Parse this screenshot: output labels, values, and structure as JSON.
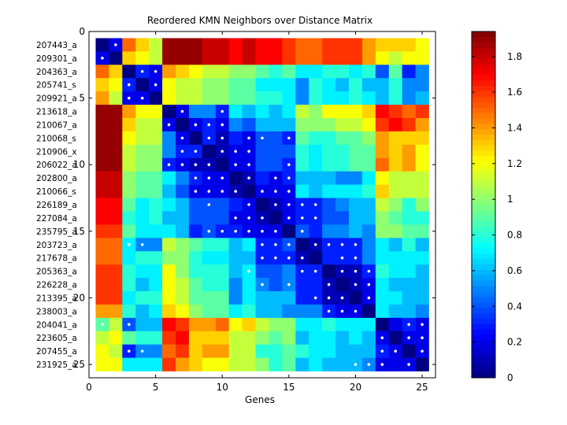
{
  "chart_data": {
    "type": "heatmap",
    "title": "Reordered KMN Neighbors over Distance Matrix",
    "xlabel": "Genes",
    "ylabel": "",
    "x_ticks": [
      "0",
      "5",
      "10",
      "15",
      "20",
      "25"
    ],
    "y_ticks": [
      "0",
      "5",
      "10",
      "15",
      "20",
      "25"
    ],
    "xlim": [
      0,
      26
    ],
    "ylim": [
      0,
      26
    ],
    "row_labels": [
      "207443_a",
      "209301_a",
      "204363_a",
      "205741_s",
      "209921_a",
      "213618_a",
      "210067_a",
      "210068_s",
      "210906_x",
      "206022_a",
      "202800_a",
      "210066_s",
      "226189_a",
      "227084_a",
      "235795_a",
      "203723_a",
      "217678_a",
      "205363_a",
      "226228_a",
      "213395_a",
      "238003_a",
      "204041_a",
      "223605_a",
      "207455_a",
      "231925_a"
    ],
    "colorbar": {
      "min": 0,
      "max": 1.94,
      "ticks": [
        "0",
        "0.2",
        "0.4",
        "0.6",
        "0.8",
        "1",
        "1.2",
        "1.4",
        "1.6",
        "1.8"
      ]
    },
    "matrix": [
      [
        0,
        0.2,
        1.5,
        1.3,
        1.1,
        1.9,
        1.9,
        1.9,
        1.8,
        1.8,
        1.7,
        1.8,
        1.7,
        1.7,
        1.6,
        1.5,
        1.5,
        1.6,
        1.6,
        1.6,
        1.4,
        1.3,
        1.3,
        1.3,
        1.2
      ],
      [
        0.2,
        0,
        1.3,
        1.2,
        1.1,
        1.9,
        1.9,
        1.9,
        1.8,
        1.8,
        1.7,
        1.8,
        1.7,
        1.7,
        1.6,
        1.5,
        1.5,
        1.6,
        1.6,
        1.6,
        1.4,
        1.2,
        1.1,
        1.2,
        1.2
      ],
      [
        1.5,
        1.3,
        0,
        0.3,
        0.2,
        1.4,
        1.3,
        1.2,
        1.1,
        1.1,
        1.0,
        1.0,
        0.9,
        0.8,
        0.9,
        0.7,
        0.7,
        0.8,
        0.8,
        0.7,
        0.8,
        0.4,
        0.9,
        0.3,
        0.5
      ],
      [
        1.3,
        1.2,
        0.3,
        0,
        0.2,
        1.2,
        1.1,
        1.1,
        1.0,
        1.0,
        0.9,
        0.9,
        0.7,
        0.7,
        0.7,
        0.5,
        0.8,
        0.7,
        0.6,
        0.8,
        0.6,
        0.6,
        0.8,
        0.5,
        0.5
      ],
      [
        1.4,
        1.1,
        0.2,
        0.2,
        0,
        1.2,
        1.1,
        1.1,
        1.0,
        1.0,
        0.9,
        0.9,
        0.8,
        0.8,
        0.7,
        0.5,
        0.8,
        0.7,
        0.7,
        0.8,
        0.7,
        0.6,
        0.8,
        0.5,
        0.6
      ],
      [
        1.9,
        1.9,
        1.4,
        1.2,
        1.2,
        0,
        0.2,
        0.5,
        0.5,
        0.3,
        0.7,
        0.6,
        0.7,
        0.6,
        0.7,
        1.1,
        1.0,
        1.2,
        1.2,
        1.2,
        1.3,
        1.7,
        1.6,
        1.5,
        1.6
      ],
      [
        1.9,
        1.9,
        1.3,
        1.1,
        1.1,
        0.2,
        0,
        0.2,
        0.3,
        0.2,
        0.5,
        0.4,
        0.6,
        0.6,
        0.6,
        1.0,
        1.0,
        1.0,
        1.1,
        1.1,
        1.2,
        1.6,
        1.7,
        1.6,
        1.4
      ],
      [
        1.9,
        1.9,
        1.2,
        1.1,
        1.1,
        0.5,
        0.2,
        0,
        0.3,
        0.1,
        0.3,
        0.2,
        0.4,
        0.4,
        0.3,
        0.9,
        0.8,
        0.8,
        0.9,
        0.9,
        1.0,
        1.4,
        1.3,
        1.3,
        1.3
      ],
      [
        1.9,
        1.9,
        1.1,
        1.0,
        1.0,
        0.5,
        0.3,
        0.3,
        0,
        0.1,
        0.2,
        0.2,
        0.4,
        0.4,
        0.4,
        0.8,
        0.7,
        0.8,
        0.8,
        0.9,
        0.9,
        1.4,
        1.3,
        1.4,
        1.2
      ],
      [
        1.9,
        1.9,
        1.1,
        1.0,
        1.0,
        0.3,
        0.2,
        0.1,
        0.1,
        0,
        0.2,
        0.2,
        0.4,
        0.4,
        0.3,
        0.8,
        0.7,
        0.8,
        0.8,
        0.9,
        0.9,
        1.5,
        1.3,
        1.4,
        1.2
      ],
      [
        1.8,
        1.8,
        1.0,
        0.9,
        0.9,
        0.7,
        0.5,
        0.3,
        0.2,
        0.2,
        0,
        0.1,
        0.3,
        0.2,
        0.3,
        0.6,
        0.6,
        0.6,
        0.5,
        0.5,
        0.7,
        1.2,
        1.1,
        1.1,
        1.1
      ],
      [
        1.8,
        1.8,
        1.0,
        0.9,
        0.9,
        0.6,
        0.4,
        0.2,
        0.2,
        0.2,
        0.1,
        0,
        0.2,
        0.2,
        0.2,
        0.7,
        0.6,
        0.7,
        0.7,
        0.7,
        0.8,
        1.3,
        1.1,
        1.1,
        1.1
      ],
      [
        1.7,
        1.7,
        0.9,
        0.7,
        0.8,
        0.7,
        0.6,
        0.4,
        0.4,
        0.4,
        0.3,
        0.2,
        0,
        0.1,
        0.2,
        0.3,
        0.3,
        0.4,
        0.5,
        0.6,
        0.6,
        1.1,
        1.0,
        0.8,
        1.0
      ],
      [
        1.7,
        1.7,
        0.8,
        0.7,
        0.8,
        0.6,
        0.6,
        0.4,
        0.4,
        0.4,
        0.2,
        0.2,
        0.1,
        0,
        0.2,
        0.3,
        0.3,
        0.4,
        0.4,
        0.6,
        0.6,
        1.0,
        0.9,
        0.8,
        0.8
      ],
      [
        1.6,
        1.6,
        0.9,
        0.7,
        0.7,
        0.7,
        0.6,
        0.3,
        0.4,
        0.3,
        0.3,
        0.2,
        0.2,
        0.2,
        0,
        0.4,
        0.3,
        0.5,
        0.5,
        0.6,
        0.5,
        1.0,
        1.0,
        0.9,
        0.9
      ],
      [
        1.5,
        1.5,
        0.7,
        0.5,
        0.5,
        1.1,
        1.0,
        0.9,
        0.8,
        0.8,
        0.6,
        0.7,
        0.3,
        0.3,
        0.4,
        0,
        0.1,
        0.3,
        0.3,
        0.3,
        0.5,
        0.7,
        0.6,
        0.8,
        0.6
      ],
      [
        1.5,
        1.5,
        0.7,
        0.8,
        0.8,
        1.0,
        1.0,
        0.8,
        0.7,
        0.7,
        0.6,
        0.6,
        0.3,
        0.3,
        0.3,
        0.1,
        0,
        0.3,
        0.3,
        0.3,
        0.5,
        0.7,
        0.7,
        0.7,
        0.7
      ],
      [
        1.6,
        1.6,
        0.8,
        0.7,
        0.7,
        1.2,
        1.0,
        0.8,
        0.8,
        0.8,
        0.6,
        0.7,
        0.4,
        0.4,
        0.5,
        0.3,
        0.3,
        0,
        0.1,
        0.1,
        0.3,
        0.8,
        0.7,
        0.7,
        0.6
      ],
      [
        1.6,
        1.6,
        0.8,
        0.6,
        0.7,
        1.2,
        1.1,
        0.9,
        0.8,
        0.8,
        0.5,
        0.7,
        0.5,
        0.4,
        0.5,
        0.3,
        0.3,
        0.1,
        0,
        0.1,
        0.2,
        0.7,
        0.6,
        0.6,
        0.6
      ],
      [
        1.6,
        1.6,
        0.7,
        0.8,
        0.8,
        1.2,
        1.1,
        0.9,
        0.9,
        0.9,
        0.5,
        0.7,
        0.6,
        0.6,
        0.6,
        0.3,
        0.3,
        0.1,
        0.1,
        0,
        0.2,
        0.7,
        0.7,
        0.6,
        0.6
      ],
      [
        1.4,
        1.4,
        0.8,
        0.6,
        0.7,
        1.3,
        1.2,
        1.0,
        0.9,
        0.9,
        0.7,
        0.8,
        0.6,
        0.6,
        0.5,
        0.5,
        0.5,
        0.3,
        0.2,
        0.2,
        0,
        0.7,
        0.6,
        0.6,
        0.5
      ],
      [
        0.9,
        1.1,
        0.4,
        0.6,
        0.6,
        1.7,
        1.6,
        1.4,
        1.4,
        1.5,
        1.2,
        1.3,
        1.1,
        1.0,
        1.0,
        0.7,
        0.7,
        0.8,
        0.7,
        0.7,
        0.7,
        0,
        0.2,
        0.3,
        0.2
      ],
      [
        1.1,
        1.2,
        0.9,
        0.8,
        0.8,
        1.6,
        1.7,
        1.3,
        1.3,
        1.3,
        1.1,
        1.1,
        1.0,
        0.9,
        1.0,
        0.6,
        0.7,
        0.7,
        0.6,
        0.7,
        0.6,
        0.2,
        0,
        0.2,
        0.2
      ],
      [
        1.2,
        1.1,
        0.3,
        0.5,
        0.5,
        1.5,
        1.6,
        1.3,
        1.4,
        1.4,
        1.1,
        1.1,
        0.8,
        0.8,
        0.9,
        0.8,
        0.7,
        0.7,
        0.6,
        0.6,
        0.6,
        0.3,
        0.2,
        0,
        0.2
      ],
      [
        1.2,
        1.2,
        0.7,
        0.7,
        0.7,
        1.6,
        1.4,
        1.3,
        1.2,
        1.2,
        1.1,
        1.1,
        1.0,
        0.8,
        0.9,
        0.6,
        0.7,
        0.6,
        0.6,
        0.6,
        0.5,
        0.2,
        0.2,
        0.2,
        0
      ]
    ],
    "neighbor_markers": [
      [
        1,
        2
      ],
      [
        2,
        1
      ],
      [
        3,
        4
      ],
      [
        3,
        5
      ],
      [
        4,
        3
      ],
      [
        4,
        5
      ],
      [
        5,
        3
      ],
      [
        5,
        4
      ],
      [
        6,
        7
      ],
      [
        6,
        10
      ],
      [
        7,
        6
      ],
      [
        7,
        8
      ],
      [
        7,
        9
      ],
      [
        7,
        10
      ],
      [
        8,
        7
      ],
      [
        8,
        9
      ],
      [
        8,
        10
      ],
      [
        8,
        12
      ],
      [
        8,
        13
      ],
      [
        8,
        15
      ],
      [
        9,
        7
      ],
      [
        9,
        8
      ],
      [
        9,
        10
      ],
      [
        9,
        11
      ],
      [
        9,
        12
      ],
      [
        10,
        6
      ],
      [
        10,
        7
      ],
      [
        10,
        8
      ],
      [
        10,
        9
      ],
      [
        10,
        11
      ],
      [
        10,
        12
      ],
      [
        10,
        15
      ],
      [
        11,
        8
      ],
      [
        11,
        9
      ],
      [
        11,
        10
      ],
      [
        11,
        12
      ],
      [
        11,
        14
      ],
      [
        11,
        15
      ],
      [
        12,
        8
      ],
      [
        12,
        9
      ],
      [
        12,
        10
      ],
      [
        12,
        11
      ],
      [
        12,
        13
      ],
      [
        12,
        14
      ],
      [
        12,
        15
      ],
      [
        13,
        9
      ],
      [
        13,
        12
      ],
      [
        13,
        14
      ],
      [
        13,
        15
      ],
      [
        13,
        16
      ],
      [
        13,
        17
      ],
      [
        14,
        11
      ],
      [
        14,
        12
      ],
      [
        14,
        13
      ],
      [
        14,
        15
      ],
      [
        14,
        16
      ],
      [
        14,
        17
      ],
      [
        15,
        9
      ],
      [
        15,
        10
      ],
      [
        15,
        11
      ],
      [
        15,
        12
      ],
      [
        15,
        13
      ],
      [
        15,
        14
      ],
      [
        15,
        16
      ],
      [
        16,
        3
      ],
      [
        16,
        4
      ],
      [
        16,
        13
      ],
      [
        16,
        14
      ],
      [
        16,
        15
      ],
      [
        16,
        17
      ],
      [
        16,
        18
      ],
      [
        16,
        19
      ],
      [
        16,
        20
      ],
      [
        17,
        13
      ],
      [
        17,
        14
      ],
      [
        17,
        15
      ],
      [
        17,
        16
      ],
      [
        17,
        19
      ],
      [
        17,
        20
      ],
      [
        18,
        12
      ],
      [
        18,
        16
      ],
      [
        18,
        17
      ],
      [
        18,
        19
      ],
      [
        18,
        20
      ],
      [
        18,
        21
      ],
      [
        19,
        13
      ],
      [
        19,
        15
      ],
      [
        19,
        18
      ],
      [
        19,
        20
      ],
      [
        19,
        21
      ],
      [
        20,
        17
      ],
      [
        20,
        18
      ],
      [
        20,
        19
      ],
      [
        20,
        21
      ],
      [
        21,
        18
      ],
      [
        21,
        19
      ],
      [
        21,
        20
      ],
      [
        22,
        1
      ],
      [
        22,
        3
      ],
      [
        22,
        24
      ],
      [
        22,
        25
      ],
      [
        23,
        22
      ],
      [
        23,
        24
      ],
      [
        23,
        25
      ],
      [
        24,
        3
      ],
      [
        24,
        4
      ],
      [
        24,
        22
      ],
      [
        24,
        23
      ],
      [
        24,
        25
      ],
      [
        25,
        20
      ],
      [
        25,
        21
      ],
      [
        25,
        22
      ],
      [
        25,
        24
      ]
    ]
  }
}
